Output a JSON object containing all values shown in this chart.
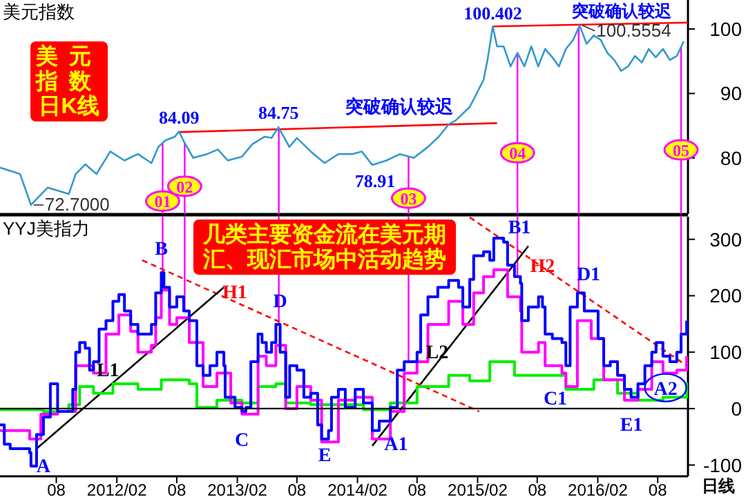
{
  "chart_data": [
    {
      "type": "line",
      "title": "美元指数",
      "xlim": [
        "2011-02-11",
        "2016-11-01"
      ],
      "ylim": [
        71.3,
        104.5
      ],
      "yticks": [
        80,
        90,
        100
      ],
      "tick_labels": "y",
      "series": [
        {
          "type": "line",
          "color": "#3399cc",
          "x": [
            "2011-02-11",
            "2011-04-13",
            "2011-05-16",
            "2011-07-06",
            "2011-09-08",
            "2011-09-29",
            "2011-10-28",
            "2011-12-01",
            "2012-01-12",
            "2012-02-24",
            "2012-04-05",
            "2012-05-16",
            "2012-06-06",
            "2012-06-27",
            "2012-07-26",
            "2012-08-08",
            "2012-08-21",
            "2012-09-20",
            "2012-11-01",
            "2012-12-04",
            "2013-01-03",
            "2013-02-15",
            "2013-03-18",
            "2013-04-25",
            "2013-05-16",
            "2013-06-06",
            "2013-07-09",
            "2013-08-01",
            "2013-09-12",
            "2013-10-24",
            "2013-12-05",
            "2014-01-16",
            "2014-02-14",
            "2014-03-18",
            "2014-04-30",
            "2014-06-10",
            "2014-07-22",
            "2014-09-03",
            "2014-10-06",
            "2014-11-05",
            "2014-11-26",
            "2015-01-08",
            "2015-01-29",
            "2015-02-19",
            "2015-03-03",
            "2015-03-19",
            "2015-04-01",
            "2015-04-21",
            "2015-05-12",
            "2015-06-02",
            "2015-06-23",
            "2015-07-14",
            "2015-08-04",
            "2015-08-25",
            "2015-09-16",
            "2015-10-06",
            "2015-10-27",
            "2015-11-18",
            "2015-12-08",
            "2015-12-29",
            "2016-01-20",
            "2016-02-10",
            "2016-03-01",
            "2016-03-22",
            "2016-04-12",
            "2016-05-03",
            "2016-05-24",
            "2016-06-14",
            "2016-07-05",
            "2016-07-26",
            "2016-08-17",
            "2016-09-07",
            "2016-09-28",
            "2016-10-19"
          ],
          "values": [
            78.5,
            77.5,
            72.7,
            75.4,
            74.4,
            77.5,
            79.0,
            77.5,
            81.0,
            79.6,
            80.6,
            79.2,
            81.7,
            82.7,
            83.3,
            84.09,
            82.7,
            80.0,
            80.6,
            81.3,
            79.6,
            80.2,
            82.1,
            83.3,
            83.1,
            84.75,
            81.7,
            83.1,
            81.0,
            79.2,
            80.6,
            80.6,
            81.0,
            78.91,
            79.6,
            80.6,
            80.0,
            81.7,
            83.3,
            85.2,
            85.8,
            87.9,
            90.0,
            92.1,
            95.2,
            100.402,
            97.3,
            97.3,
            94.2,
            96.3,
            94.2,
            97.3,
            94.2,
            96.9,
            95.6,
            94.2,
            96.9,
            98.3,
            100.5554,
            97.7,
            99.0,
            98.3,
            96.3,
            95.2,
            93.5,
            94.2,
            95.8,
            94.8,
            96.9,
            95.6,
            96.9,
            95.2,
            95.8,
            98.1
          ]
        },
        {
          "type": "line",
          "color": "#ff0000",
          "x": [
            "2012-08-08",
            "2015-04-01"
          ],
          "values": [
            84.0,
            85.4
          ]
        },
        {
          "type": "line",
          "color": "#ff0000",
          "x": [
            "2015-03-19",
            "2016-11-01"
          ],
          "values": [
            100.4,
            101.0
          ]
        }
      ],
      "ref_lines": [
        {
          "axis": "x",
          "value": "2012-06-19",
          "color": "#ff00ff"
        },
        {
          "axis": "x",
          "value": "2012-08-25",
          "color": "#ff00ff"
        },
        {
          "axis": "x",
          "value": "2013-06-07",
          "color": "#ff00ff"
        },
        {
          "axis": "x",
          "value": "2014-07-06",
          "color": "#ff00ff"
        },
        {
          "axis": "x",
          "value": "2015-06-02",
          "color": "#ff00ff"
        },
        {
          "axis": "x",
          "value": "2015-12-05",
          "color": "#ff00ff"
        },
        {
          "axis": "x",
          "value": "2016-10-11",
          "color": "#ff00ff"
        }
      ],
      "annotations": [
        {
          "text": "72.7000",
          "x": "2011-05-16",
          "y": 72.7
        },
        {
          "text": "84.09",
          "x": "2012-08-08",
          "y": 84.09
        },
        {
          "text": "84.75",
          "x": "2013-06-06",
          "y": 84.75
        },
        {
          "text": "78.91",
          "x": "2014-03-18",
          "y": 78.91
        },
        {
          "text": "100.402",
          "x": "2015-03-19",
          "y": 100.402
        },
        {
          "text": "100.5554",
          "x": "2015-12-08",
          "y": 100.5554
        },
        {
          "text": "01",
          "x": "2012-06-19",
          "y": 73.3
        },
        {
          "text": "02",
          "x": "2012-08-25",
          "y": 75.6
        },
        {
          "text": "03",
          "x": "2014-07-06",
          "y": 73.75
        },
        {
          "text": "04",
          "x": "2015-06-02",
          "y": 80.8
        },
        {
          "text": "05",
          "x": "2016-10-11",
          "y": 81.25
        },
        "突破确认较迟",
        "突破确认较迟",
        "美元指数日K线"
      ]
    },
    {
      "type": "step",
      "title": "YYJ美指力",
      "xlim": [
        "2011-02-11",
        "2016-11-01"
      ],
      "ylim": [
        -120,
        340
      ],
      "yticks": [
        -100,
        0,
        100,
        200,
        300
      ],
      "xticks": [
        {
          "value": "2011-08",
          "label": "08"
        },
        {
          "value": "2012-02",
          "label": "2012/02"
        },
        {
          "value": "2012-08",
          "label": "08"
        },
        {
          "value": "2013-02",
          "label": "2013/02"
        },
        {
          "value": "2013-08",
          "label": "08"
        },
        {
          "value": "2014-02",
          "label": "2014/02"
        },
        {
          "value": "2014-08",
          "label": "08"
        },
        {
          "value": "2015-02",
          "label": "2015/02"
        },
        {
          "value": "2015-08",
          "label": "08"
        },
        {
          "value": "2016-02",
          "label": "2016/02"
        },
        {
          "value": "2016-08",
          "label": "08"
        }
      ],
      "series": [
        {
          "type": "step",
          "color": "#0000ff",
          "x": [
            "2011-02-11",
            "2011-02-24",
            "2011-03-14",
            "2011-05-12",
            "2011-05-16",
            "2011-06-02",
            "2011-06-23",
            "2011-07-14",
            "2011-08-05",
            "2011-09-08",
            "2011-09-20",
            "2011-09-29",
            "2011-10-11",
            "2011-10-28",
            "2011-11-10",
            "2011-11-22",
            "2011-12-09",
            "2011-12-30",
            "2012-01-20",
            "2012-02-07",
            "2012-02-24",
            "2012-03-14",
            "2012-04-05",
            "2012-05-04",
            "2012-05-16",
            "2012-05-29",
            "2012-06-15",
            "2012-06-23",
            "2012-07-10",
            "2012-08-01",
            "2012-08-22",
            "2012-09-08",
            "2012-10-01",
            "2012-10-20",
            "2012-11-10",
            "2012-12-01",
            "2012-12-22",
            "2012-12-26",
            "2013-01-12",
            "2013-01-25",
            "2013-02-15",
            "2013-02-27",
            "2013-03-14",
            "2013-04-05",
            "2013-04-17",
            "2013-04-30",
            "2013-05-16",
            "2013-05-29",
            "2013-06-11",
            "2013-06-28",
            "2013-07-10",
            "2013-08-01",
            "2013-08-22",
            "2013-09-12",
            "2013-10-03",
            "2013-10-15",
            "2013-11-05",
            "2013-11-14",
            "2013-12-05",
            "2013-12-26",
            "2014-01-25",
            "2014-02-19",
            "2014-03-18",
            "2014-04-08",
            "2014-05-12",
            "2014-06-02",
            "2014-06-23",
            "2014-08-01",
            "2014-08-12",
            "2014-09-03",
            "2014-10-03",
            "2014-11-05",
            "2014-12-05",
            "2014-12-18",
            "2015-01-08",
            "2015-01-20",
            "2015-02-19",
            "2015-03-10",
            "2015-03-22",
            "2015-04-21",
            "2015-05-03",
            "2015-05-24",
            "2015-06-11",
            "2015-06-15",
            "2015-07-05",
            "2015-08-05",
            "2015-08-17",
            "2015-08-25",
            "2015-09-16",
            "2015-10-15",
            "2015-10-27",
            "2015-11-09",
            "2015-12-01",
            "2015-12-22",
            "2016-01-12",
            "2016-02-02",
            "2016-02-19",
            "2016-03-10",
            "2016-04-01",
            "2016-04-22",
            "2016-05-12",
            "2016-06-02",
            "2016-06-23",
            "2016-07-14",
            "2016-07-27",
            "2016-08-17",
            "2016-09-07",
            "2016-09-28",
            "2016-10-11",
            "2016-10-28"
          ],
          "values": [
            -29,
            -63,
            -71,
            -78,
            -102,
            -46,
            -15,
            44,
            -5,
            -5,
            34,
            100,
            117,
            107,
            68,
            83,
            141,
            156,
            190,
            202,
            173,
            149,
            132,
            132,
            149,
            205,
            241,
            215,
            180,
            198,
            173,
            156,
            76,
            59,
            76,
            100,
            76,
            20,
            20,
            2,
            -5,
            2,
            83,
            132,
            117,
            100,
            117,
            149,
            100,
            20,
            76,
            68,
            20,
            27,
            -29,
            -54,
            -39,
            20,
            34,
            2,
            34,
            10,
            -39,
            -22,
            2,
            68,
            83,
            100,
            166,
            198,
            215,
            227,
            215,
            180,
            229,
            271,
            278,
            263,
            302,
            295,
            254,
            234,
            222,
            156,
            180,
            198,
            180,
            132,
            124,
            117,
            76,
            180,
            205,
            173,
            173,
            124,
            76,
            83,
            59,
            34,
            20,
            44,
            76,
            100,
            117,
            93,
            83,
            100,
            132,
            156
          ]
        },
        {
          "type": "step",
          "color": "#ff00ff",
          "x": [
            "2011-02-11",
            "2011-05-12",
            "2011-06-15",
            "2011-08-05",
            "2011-09-29",
            "2011-10-28",
            "2011-11-22",
            "2011-12-30",
            "2012-02-07",
            "2012-03-14",
            "2012-04-05",
            "2012-05-16",
            "2012-05-29",
            "2012-06-15",
            "2012-07-10",
            "2012-08-01",
            "2012-09-08",
            "2012-10-20",
            "2012-12-01",
            "2013-01-12",
            "2013-02-15",
            "2013-04-05",
            "2013-04-30",
            "2013-05-29",
            "2013-06-28",
            "2013-08-01",
            "2013-09-12",
            "2013-10-15",
            "2013-12-05",
            "2014-01-25",
            "2014-03-18",
            "2014-05-12",
            "2014-06-23",
            "2014-08-01",
            "2014-09-03",
            "2014-11-05",
            "2014-12-18",
            "2015-01-20",
            "2015-02-19",
            "2015-03-22",
            "2015-05-03",
            "2015-06-11",
            "2015-06-15",
            "2015-08-05",
            "2015-08-25",
            "2015-10-15",
            "2015-10-27",
            "2015-12-01",
            "2016-01-12",
            "2016-02-19",
            "2016-04-22",
            "2016-06-02",
            "2016-07-14",
            "2016-08-17",
            "2016-09-28",
            "2016-10-28"
          ],
          "values": [
            -39,
            -54,
            -10,
            -5,
            76,
            76,
            63,
            132,
            166,
            137,
            100,
            112,
            161,
            210,
            149,
            161,
            117,
            39,
            63,
            10,
            -10,
            93,
            76,
            112,
            0,
            39,
            15,
            -59,
            15,
            20,
            -54,
            -5,
            63,
            83,
            149,
            190,
            149,
            205,
            234,
            246,
            198,
            173,
            100,
            117,
            76,
            63,
            39,
            156,
            124,
            51,
            15,
            34,
            83,
            63,
            68,
            93
          ]
        },
        {
          "type": "step",
          "color": "#00ee00",
          "x": [
            "2011-02-11",
            "2011-06-23",
            "2011-09-08",
            "2011-10-11",
            "2011-11-22",
            "2012-01-20",
            "2012-04-05",
            "2012-06-15",
            "2012-09-08",
            "2012-10-01",
            "2012-12-01",
            "2013-02-15",
            "2013-04-05",
            "2013-05-29",
            "2013-06-28",
            "2013-09-12",
            "2013-12-05",
            "2014-02-19",
            "2014-05-12",
            "2014-08-01",
            "2014-11-05",
            "2015-01-08",
            "2015-03-10",
            "2015-05-24",
            "2015-08-25",
            "2015-10-27",
            "2016-01-20",
            "2016-04-01",
            "2016-06-02",
            "2016-08-17",
            "2016-10-28"
          ],
          "values": [
            -2,
            -5,
            7,
            39,
            27,
            44,
            34,
            51,
            44,
            2,
            15,
            10,
            39,
            44,
            10,
            7,
            7,
            -2,
            10,
            39,
            59,
            49,
            83,
            59,
            59,
            34,
            51,
            27,
            15,
            20,
            46
          ]
        },
        {
          "type": "line",
          "color": "#000000",
          "x": [
            "2011-06-02",
            "2012-12-22"
          ],
          "values": [
            -71,
            215
          ]
        },
        {
          "type": "line",
          "color": "#ff0000",
          "line_style": "dashed",
          "x": [
            "2012-04-18",
            "2015-02-06"
          ],
          "values": [
            263,
            -5
          ]
        },
        {
          "type": "line",
          "color": "#000000",
          "x": [
            "2014-03-18",
            "2015-07-05"
          ],
          "values": [
            -66,
            288
          ]
        },
        {
          "type": "line",
          "color": "#ff0000",
          "line_style": "dashed",
          "x": [
            "2015-01-08",
            "2016-10-28"
          ],
          "values": [
            339,
            76
          ]
        }
      ],
      "ref_lines": [
        {
          "axis": "y",
          "value": 0,
          "color": "#000000"
        },
        {
          "axis": "x",
          "value": "2012-06-19",
          "color": "#ff00ff"
        },
        {
          "axis": "x",
          "value": "2012-08-25",
          "color": "#ff00ff"
        },
        {
          "axis": "x",
          "value": "2013-06-07",
          "color": "#ff00ff"
        },
        {
          "axis": "x",
          "value": "2014-07-06",
          "color": "#ff00ff"
        },
        {
          "axis": "x",
          "value": "2015-06-02",
          "color": "#ff00ff"
        },
        {
          "axis": "x",
          "value": "2015-12-05",
          "color": "#ff00ff"
        },
        {
          "axis": "x",
          "value": "2016-10-11",
          "color": "#ff00ff"
        }
      ],
      "annotations": [
        {
          "text": "A",
          "x": "2011-06-23",
          "y": -100
        },
        {
          "text": "B",
          "x": "2012-06-15",
          "y": 285
        },
        {
          "text": "D",
          "x": "2013-06-11",
          "y": 192
        },
        {
          "text": "L1",
          "x": "2012-01-05",
          "y": 70
        },
        {
          "text": "A1",
          "x": "2014-05-29",
          "y": -61
        },
        {
          "text": "L2",
          "x": "2014-10-01",
          "y": 102
        },
        {
          "text": "H2",
          "x": "2015-08-17",
          "y": 254
        },
        {
          "text": "A2",
          "x": "2016-08-25",
          "y": 37
        },
        "几类主要资金流在美元期汇、现汇市场中活动趋势",
        "日线",
        "C",
        "E",
        "C1",
        "D1",
        "E1",
        "H1",
        "B1"
      ]
    }
  ]
}
